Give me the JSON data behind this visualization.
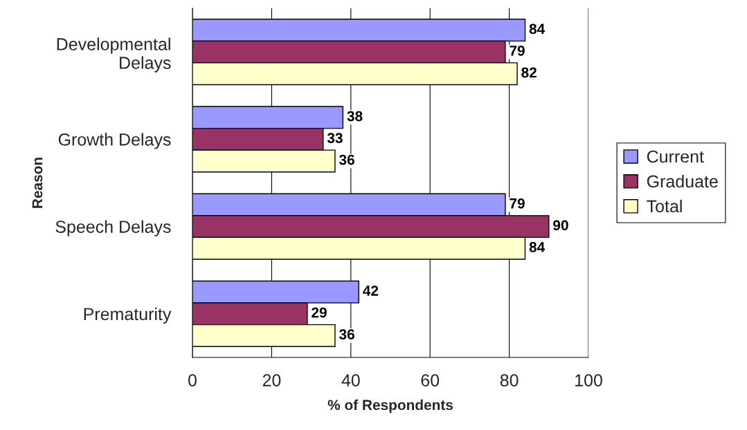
{
  "chart_data": {
    "type": "bar",
    "orientation": "horizontal",
    "xlabel": "% of Respondents",
    "ylabel": "Reason",
    "categories": [
      "Developmental\nDelays",
      "Growth Delays",
      "Speech Delays",
      "Prematurity"
    ],
    "series": [
      {
        "name": "Current",
        "color": "#9999ff",
        "values": [
          84,
          38,
          79,
          42
        ]
      },
      {
        "name": "Graduate",
        "color": "#993366",
        "values": [
          79,
          33,
          90,
          29
        ]
      },
      {
        "name": "Total",
        "color": "#ffffcc",
        "values": [
          82,
          36,
          84,
          36
        ]
      }
    ],
    "xlim": [
      0,
      100
    ],
    "xticks": [
      0,
      20,
      40,
      60,
      80,
      100
    ],
    "grid": "x",
    "legend": "right",
    "data_labels": true
  }
}
